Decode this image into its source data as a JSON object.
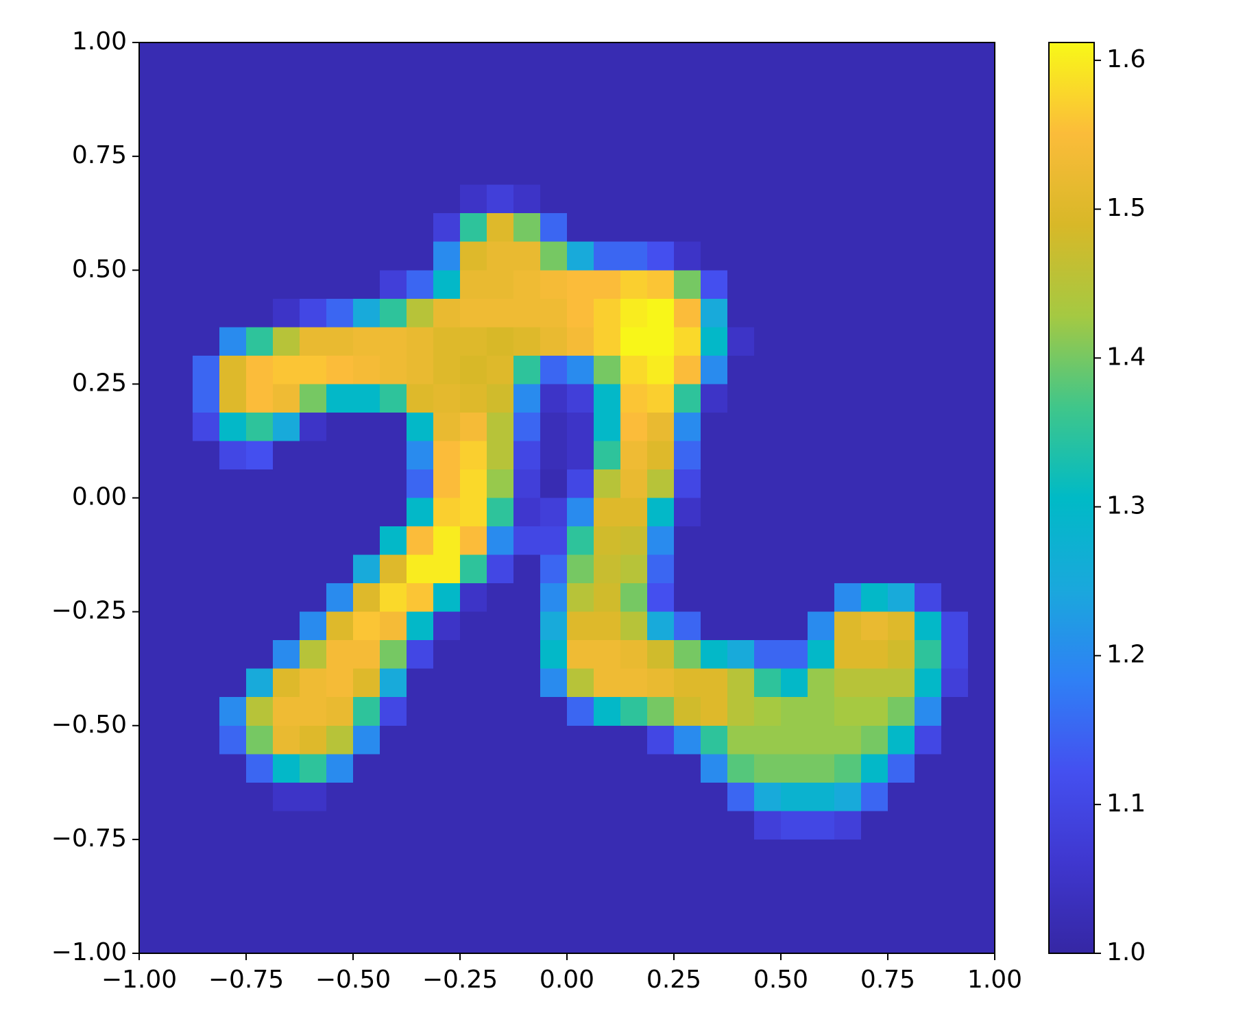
{
  "chart_data": {
    "type": "heatmap",
    "xlim": [
      -1,
      1
    ],
    "ylim": [
      -1,
      1
    ],
    "xticks": [
      {
        "value": -1,
        "label": "−1.00"
      },
      {
        "value": -0.75,
        "label": "−0.75"
      },
      {
        "value": -0.5,
        "label": "−0.50"
      },
      {
        "value": -0.25,
        "label": "−0.25"
      },
      {
        "value": 0,
        "label": "0.00"
      },
      0.25,
      {
        "value": 0.5,
        "label": "0.50"
      },
      0.75,
      {
        "value": 1,
        "label": "1.00"
      }
    ],
    "yticks": [
      {
        "value": -1,
        "label": "−1.00"
      },
      {
        "value": -0.75,
        "label": "−0.75"
      },
      {
        "value": -0.5,
        "label": "−0.50"
      },
      {
        "value": -0.25,
        "label": "−0.25"
      },
      {
        "value": 0,
        "label": "0.00"
      },
      0.25,
      {
        "value": 0.5,
        "label": "0.50"
      },
      0.75,
      {
        "value": 1,
        "label": "1.00"
      }
    ],
    "clim": [
      1.0,
      1.612
    ],
    "colorbar_ticks": [
      {
        "value": 1,
        "label": "1.0"
      },
      1.1,
      1.2,
      1.3,
      1.4,
      1.5,
      1.6
    ],
    "colormap": [
      "#3527a4",
      "#3f37cf",
      "#4450f0",
      "#2f80f5",
      "#1aa8dc",
      "#00bac6",
      "#40c68a",
      "#a5c942",
      "#d8b828",
      "#fbbc3a",
      "#f8f818"
    ],
    "z": [
      [
        1.02,
        1.02,
        1.02,
        1.02,
        1.02,
        1.02,
        1.02,
        1.02,
        1.02,
        1.02,
        1.02,
        1.02,
        1.02,
        1.02,
        1.02,
        1.02,
        1.02,
        1.02,
        1.02,
        1.02,
        1.02,
        1.02,
        1.02,
        1.02,
        1.02,
        1.02,
        1.02,
        1.02,
        1.02,
        1.02,
        1.02,
        1.02
      ],
      [
        1.02,
        1.02,
        1.02,
        1.02,
        1.02,
        1.02,
        1.02,
        1.02,
        1.02,
        1.02,
        1.02,
        1.02,
        1.02,
        1.02,
        1.02,
        1.02,
        1.02,
        1.02,
        1.02,
        1.02,
        1.02,
        1.02,
        1.02,
        1.02,
        1.02,
        1.02,
        1.02,
        1.02,
        1.02,
        1.02,
        1.02,
        1.02
      ],
      [
        1.02,
        1.02,
        1.02,
        1.02,
        1.02,
        1.02,
        1.02,
        1.02,
        1.02,
        1.02,
        1.02,
        1.02,
        1.02,
        1.02,
        1.02,
        1.02,
        1.02,
        1.02,
        1.02,
        1.02,
        1.02,
        1.02,
        1.02,
        1.02,
        1.02,
        1.02,
        1.02,
        1.02,
        1.02,
        1.02,
        1.02,
        1.02
      ],
      [
        1.02,
        1.02,
        1.02,
        1.02,
        1.02,
        1.02,
        1.02,
        1.02,
        1.02,
        1.02,
        1.02,
        1.02,
        1.02,
        1.02,
        1.02,
        1.02,
        1.02,
        1.02,
        1.02,
        1.02,
        1.02,
        1.02,
        1.02,
        1.02,
        1.02,
        1.02,
        1.02,
        1.02,
        1.02,
        1.02,
        1.02,
        1.02
      ],
      [
        1.02,
        1.02,
        1.02,
        1.02,
        1.02,
        1.02,
        1.02,
        1.02,
        1.02,
        1.02,
        1.02,
        1.02,
        1.02,
        1.02,
        1.02,
        1.02,
        1.02,
        1.02,
        1.02,
        1.02,
        1.02,
        1.02,
        1.02,
        1.02,
        1.02,
        1.02,
        1.02,
        1.02,
        1.02,
        1.02,
        1.02,
        1.02
      ],
      [
        1.02,
        1.02,
        1.02,
        1.02,
        1.02,
        1.02,
        1.02,
        1.02,
        1.02,
        1.02,
        1.02,
        1.02,
        1.05,
        1.08,
        1.05,
        1.02,
        1.02,
        1.02,
        1.02,
        1.02,
        1.02,
        1.02,
        1.02,
        1.02,
        1.02,
        1.02,
        1.02,
        1.02,
        1.02,
        1.02,
        1.02,
        1.02
      ],
      [
        1.02,
        1.02,
        1.02,
        1.02,
        1.02,
        1.02,
        1.02,
        1.02,
        1.02,
        1.02,
        1.02,
        1.08,
        1.35,
        1.5,
        1.4,
        1.15,
        1.02,
        1.02,
        1.02,
        1.02,
        1.02,
        1.02,
        1.02,
        1.02,
        1.02,
        1.02,
        1.02,
        1.02,
        1.02,
        1.02,
        1.02,
        1.02
      ],
      [
        1.02,
        1.02,
        1.02,
        1.02,
        1.02,
        1.02,
        1.02,
        1.02,
        1.02,
        1.02,
        1.02,
        1.2,
        1.5,
        1.52,
        1.52,
        1.4,
        1.25,
        1.15,
        1.15,
        1.12,
        1.05,
        1.02,
        1.02,
        1.02,
        1.02,
        1.02,
        1.02,
        1.02,
        1.02,
        1.02,
        1.02,
        1.02
      ],
      [
        1.02,
        1.02,
        1.02,
        1.02,
        1.02,
        1.02,
        1.02,
        1.02,
        1.02,
        1.08,
        1.15,
        1.3,
        1.52,
        1.52,
        1.53,
        1.54,
        1.55,
        1.55,
        1.57,
        1.56,
        1.4,
        1.12,
        1.02,
        1.02,
        1.02,
        1.02,
        1.02,
        1.02,
        1.02,
        1.02,
        1.02,
        1.02
      ],
      [
        1.02,
        1.02,
        1.02,
        1.02,
        1.02,
        1.05,
        1.1,
        1.15,
        1.25,
        1.35,
        1.45,
        1.52,
        1.53,
        1.53,
        1.53,
        1.53,
        1.55,
        1.57,
        1.6,
        1.61,
        1.55,
        1.25,
        1.02,
        1.02,
        1.02,
        1.02,
        1.02,
        1.02,
        1.02,
        1.02,
        1.02,
        1.02
      ],
      [
        1.02,
        1.02,
        1.02,
        1.2,
        1.35,
        1.45,
        1.52,
        1.52,
        1.53,
        1.53,
        1.52,
        1.5,
        1.5,
        1.49,
        1.5,
        1.52,
        1.54,
        1.57,
        1.61,
        1.61,
        1.58,
        1.3,
        1.05,
        1.02,
        1.02,
        1.02,
        1.02,
        1.02,
        1.02,
        1.02,
        1.02,
        1.02
      ],
      [
        1.02,
        1.02,
        1.15,
        1.5,
        1.55,
        1.56,
        1.56,
        1.55,
        1.54,
        1.53,
        1.52,
        1.5,
        1.49,
        1.5,
        1.35,
        1.15,
        1.2,
        1.4,
        1.58,
        1.6,
        1.55,
        1.2,
        1.02,
        1.02,
        1.02,
        1.02,
        1.02,
        1.02,
        1.02,
        1.02,
        1.02,
        1.02
      ],
      [
        1.02,
        1.02,
        1.15,
        1.5,
        1.55,
        1.53,
        1.4,
        1.3,
        1.3,
        1.35,
        1.5,
        1.51,
        1.5,
        1.48,
        1.2,
        1.05,
        1.08,
        1.3,
        1.56,
        1.57,
        1.35,
        1.05,
        1.02,
        1.02,
        1.02,
        1.02,
        1.02,
        1.02,
        1.02,
        1.02,
        1.02,
        1.02
      ],
      [
        1.02,
        1.02,
        1.1,
        1.3,
        1.35,
        1.25,
        1.05,
        1.02,
        1.02,
        1.02,
        1.3,
        1.52,
        1.54,
        1.45,
        1.15,
        1.03,
        1.05,
        1.3,
        1.55,
        1.52,
        1.2,
        1.02,
        1.02,
        1.02,
        1.02,
        1.02,
        1.02,
        1.02,
        1.02,
        1.02,
        1.02,
        1.02
      ],
      [
        1.02,
        1.02,
        1.02,
        1.1,
        1.12,
        1.02,
        1.02,
        1.02,
        1.02,
        1.02,
        1.2,
        1.55,
        1.57,
        1.45,
        1.1,
        1.03,
        1.05,
        1.35,
        1.53,
        1.5,
        1.15,
        1.02,
        1.02,
        1.02,
        1.02,
        1.02,
        1.02,
        1.02,
        1.02,
        1.02,
        1.02,
        1.02
      ],
      [
        1.02,
        1.02,
        1.02,
        1.02,
        1.02,
        1.02,
        1.02,
        1.02,
        1.02,
        1.02,
        1.15,
        1.55,
        1.58,
        1.42,
        1.08,
        1.02,
        1.1,
        1.45,
        1.52,
        1.45,
        1.1,
        1.02,
        1.02,
        1.02,
        1.02,
        1.02,
        1.02,
        1.02,
        1.02,
        1.02,
        1.02,
        1.02
      ],
      [
        1.02,
        1.02,
        1.02,
        1.02,
        1.02,
        1.02,
        1.02,
        1.02,
        1.02,
        1.02,
        1.3,
        1.57,
        1.58,
        1.35,
        1.06,
        1.08,
        1.2,
        1.5,
        1.5,
        1.3,
        1.05,
        1.02,
        1.02,
        1.02,
        1.02,
        1.02,
        1.02,
        1.02,
        1.02,
        1.02,
        1.02,
        1.02
      ],
      [
        1.02,
        1.02,
        1.02,
        1.02,
        1.02,
        1.02,
        1.02,
        1.02,
        1.02,
        1.3,
        1.55,
        1.6,
        1.55,
        1.2,
        1.1,
        1.1,
        1.35,
        1.48,
        1.47,
        1.2,
        1.02,
        1.02,
        1.02,
        1.02,
        1.02,
        1.02,
        1.02,
        1.02,
        1.02,
        1.02,
        1.02,
        1.02
      ],
      [
        1.02,
        1.02,
        1.02,
        1.02,
        1.02,
        1.02,
        1.02,
        1.02,
        1.25,
        1.5,
        1.6,
        1.6,
        1.35,
        1.1,
        1.02,
        1.15,
        1.4,
        1.47,
        1.45,
        1.15,
        1.02,
        1.02,
        1.02,
        1.02,
        1.02,
        1.02,
        1.02,
        1.02,
        1.02,
        1.02,
        1.02,
        1.02
      ],
      [
        1.02,
        1.02,
        1.02,
        1.02,
        1.02,
        1.02,
        1.02,
        1.2,
        1.5,
        1.58,
        1.56,
        1.3,
        1.05,
        1.02,
        1.02,
        1.2,
        1.45,
        1.48,
        1.4,
        1.12,
        1.02,
        1.02,
        1.02,
        1.02,
        1.02,
        1.02,
        1.2,
        1.3,
        1.25,
        1.1,
        1.02,
        1.02
      ],
      [
        1.02,
        1.02,
        1.02,
        1.02,
        1.02,
        1.02,
        1.2,
        1.5,
        1.56,
        1.54,
        1.3,
        1.05,
        1.02,
        1.02,
        1.02,
        1.25,
        1.5,
        1.5,
        1.45,
        1.25,
        1.15,
        1.02,
        1.02,
        1.02,
        1.02,
        1.2,
        1.5,
        1.52,
        1.5,
        1.3,
        1.1,
        1.02
      ],
      [
        1.02,
        1.02,
        1.02,
        1.02,
        1.02,
        1.2,
        1.45,
        1.54,
        1.54,
        1.4,
        1.1,
        1.02,
        1.02,
        1.02,
        1.02,
        1.3,
        1.53,
        1.53,
        1.52,
        1.48,
        1.4,
        1.3,
        1.25,
        1.15,
        1.15,
        1.3,
        1.5,
        1.5,
        1.48,
        1.35,
        1.1,
        1.02
      ],
      [
        1.02,
        1.02,
        1.02,
        1.02,
        1.25,
        1.5,
        1.53,
        1.54,
        1.5,
        1.25,
        1.02,
        1.02,
        1.02,
        1.02,
        1.02,
        1.2,
        1.45,
        1.53,
        1.53,
        1.52,
        1.5,
        1.5,
        1.45,
        1.35,
        1.3,
        1.42,
        1.45,
        1.45,
        1.45,
        1.3,
        1.08,
        1.02
      ],
      [
        1.02,
        1.02,
        1.02,
        1.2,
        1.45,
        1.53,
        1.53,
        1.52,
        1.35,
        1.1,
        1.02,
        1.02,
        1.02,
        1.02,
        1.02,
        1.02,
        1.15,
        1.3,
        1.35,
        1.4,
        1.48,
        1.5,
        1.45,
        1.43,
        1.42,
        1.42,
        1.43,
        1.43,
        1.4,
        1.2,
        1.02,
        1.02
      ],
      [
        1.02,
        1.02,
        1.02,
        1.15,
        1.4,
        1.52,
        1.5,
        1.45,
        1.2,
        1.02,
        1.02,
        1.02,
        1.02,
        1.02,
        1.02,
        1.02,
        1.02,
        1.02,
        1.02,
        1.1,
        1.2,
        1.35,
        1.42,
        1.42,
        1.42,
        1.42,
        1.42,
        1.4,
        1.3,
        1.1,
        1.02,
        1.02
      ],
      [
        1.02,
        1.02,
        1.02,
        1.02,
        1.15,
        1.3,
        1.35,
        1.2,
        1.02,
        1.02,
        1.02,
        1.02,
        1.02,
        1.02,
        1.02,
        1.02,
        1.02,
        1.02,
        1.02,
        1.02,
        1.02,
        1.2,
        1.38,
        1.4,
        1.4,
        1.4,
        1.38,
        1.3,
        1.15,
        1.02,
        1.02,
        1.02
      ],
      [
        1.02,
        1.02,
        1.02,
        1.02,
        1.02,
        1.05,
        1.05,
        1.02,
        1.02,
        1.02,
        1.02,
        1.02,
        1.02,
        1.02,
        1.02,
        1.02,
        1.02,
        1.02,
        1.02,
        1.02,
        1.02,
        1.02,
        1.15,
        1.25,
        1.28,
        1.28,
        1.25,
        1.15,
        1.02,
        1.02,
        1.02,
        1.02
      ],
      [
        1.02,
        1.02,
        1.02,
        1.02,
        1.02,
        1.02,
        1.02,
        1.02,
        1.02,
        1.02,
        1.02,
        1.02,
        1.02,
        1.02,
        1.02,
        1.02,
        1.02,
        1.02,
        1.02,
        1.02,
        1.02,
        1.02,
        1.02,
        1.08,
        1.1,
        1.1,
        1.08,
        1.02,
        1.02,
        1.02,
        1.02,
        1.02
      ],
      [
        1.02,
        1.02,
        1.02,
        1.02,
        1.02,
        1.02,
        1.02,
        1.02,
        1.02,
        1.02,
        1.02,
        1.02,
        1.02,
        1.02,
        1.02,
        1.02,
        1.02,
        1.02,
        1.02,
        1.02,
        1.02,
        1.02,
        1.02,
        1.02,
        1.02,
        1.02,
        1.02,
        1.02,
        1.02,
        1.02,
        1.02,
        1.02
      ],
      [
        1.02,
        1.02,
        1.02,
        1.02,
        1.02,
        1.02,
        1.02,
        1.02,
        1.02,
        1.02,
        1.02,
        1.02,
        1.02,
        1.02,
        1.02,
        1.02,
        1.02,
        1.02,
        1.02,
        1.02,
        1.02,
        1.02,
        1.02,
        1.02,
        1.02,
        1.02,
        1.02,
        1.02,
        1.02,
        1.02,
        1.02,
        1.02
      ],
      [
        1.02,
        1.02,
        1.02,
        1.02,
        1.02,
        1.02,
        1.02,
        1.02,
        1.02,
        1.02,
        1.02,
        1.02,
        1.02,
        1.02,
        1.02,
        1.02,
        1.02,
        1.02,
        1.02,
        1.02,
        1.02,
        1.02,
        1.02,
        1.02,
        1.02,
        1.02,
        1.02,
        1.02,
        1.02,
        1.02,
        1.02,
        1.02
      ],
      [
        1.02,
        1.02,
        1.02,
        1.02,
        1.02,
        1.02,
        1.02,
        1.02,
        1.02,
        1.02,
        1.02,
        1.02,
        1.02,
        1.02,
        1.02,
        1.02,
        1.02,
        1.02,
        1.02,
        1.02,
        1.02,
        1.02,
        1.02,
        1.02,
        1.02,
        1.02,
        1.02,
        1.02,
        1.02,
        1.02,
        1.02,
        1.02
      ]
    ]
  }
}
